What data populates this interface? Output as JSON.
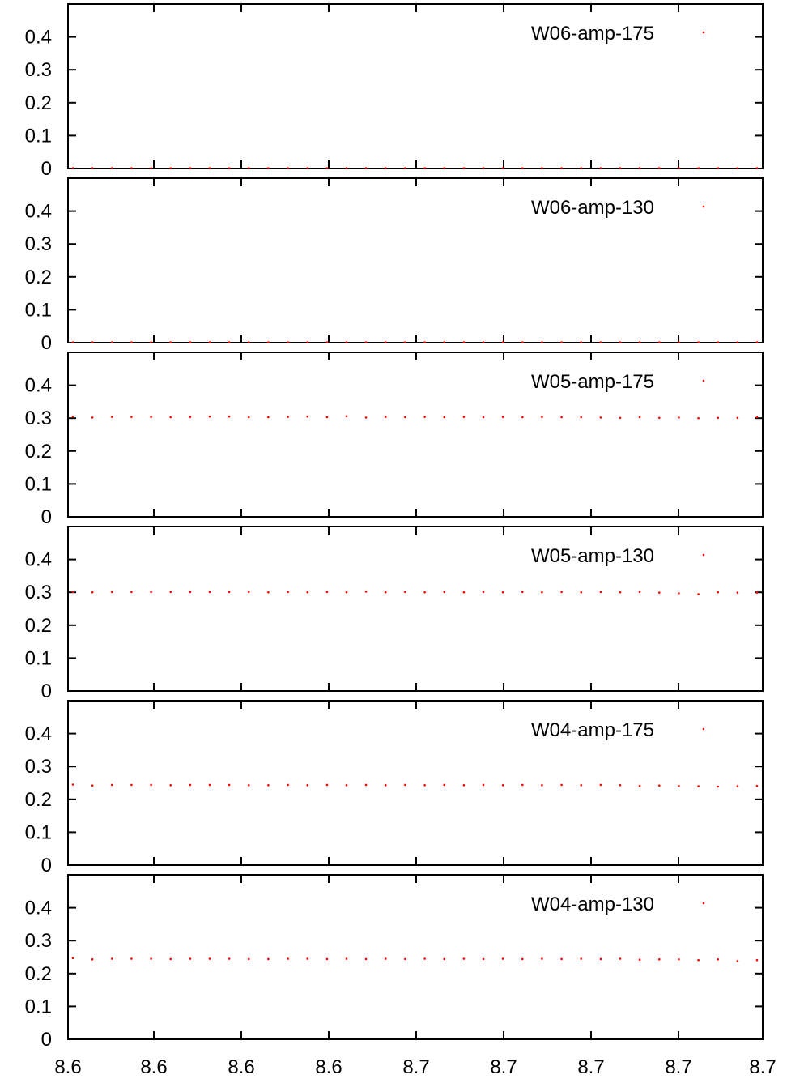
{
  "chart_data": [
    {
      "type": "scatter",
      "legend_position": "top-right",
      "ylim": [
        0,
        0.5
      ],
      "y_ticks": [
        "0",
        "0.1",
        "0.2",
        "0.3",
        "0.4"
      ],
      "x_tick_labels": [
        "8.6",
        "8.6",
        "8.6",
        "8.6",
        "8.7",
        "8.7",
        "8.7",
        "8.7",
        "8.7"
      ],
      "series": [
        {
          "name": "W06-amp-175",
          "color": "#ff0000",
          "values": [
            0.001,
            0.001,
            0.001,
            0.001,
            0.001,
            0.001,
            0.001,
            0.001,
            0.001,
            0.001,
            0.001,
            0.001,
            0.001,
            0.001,
            0.001,
            0.001,
            0.001,
            0.001,
            0.001,
            0.001,
            0.001,
            0.001,
            0.001,
            0.001,
            0.001,
            0.001,
            0.001,
            0.001,
            0.001,
            0.001,
            0.001,
            0.001,
            0.001,
            0.001,
            0.001,
            0.001
          ]
        }
      ]
    },
    {
      "type": "scatter",
      "legend_position": "top-right",
      "ylim": [
        0,
        0.5
      ],
      "y_ticks": [
        "0",
        "0.1",
        "0.2",
        "0.3",
        "0.4"
      ],
      "x_tick_labels": [
        "8.6",
        "8.6",
        "8.6",
        "8.6",
        "8.7",
        "8.7",
        "8.7",
        "8.7",
        "8.7"
      ],
      "series": [
        {
          "name": "W06-amp-130",
          "color": "#ff0000",
          "values": [
            0.001,
            0.001,
            0.001,
            0.001,
            0.001,
            0.001,
            0.001,
            0.001,
            0.001,
            0.001,
            0.001,
            0.001,
            0.001,
            0.001,
            0.001,
            0.001,
            0.001,
            0.001,
            0.001,
            0.001,
            0.001,
            0.001,
            0.001,
            0.001,
            0.001,
            0.001,
            0.001,
            0.001,
            0.001,
            0.001,
            0.001,
            0.001,
            0.001,
            0.001,
            0.001,
            0.001
          ]
        }
      ]
    },
    {
      "type": "scatter",
      "legend_position": "top-right",
      "ylim": [
        0,
        0.5
      ],
      "y_ticks": [
        "0",
        "0.1",
        "0.2",
        "0.3",
        "0.4"
      ],
      "x_tick_labels": [
        "8.6",
        "8.6",
        "8.6",
        "8.6",
        "8.7",
        "8.7",
        "8.7",
        "8.7",
        "8.7"
      ],
      "series": [
        {
          "name": "W05-amp-175",
          "color": "#ff0000",
          "values": [
            0.305,
            0.302,
            0.304,
            0.304,
            0.304,
            0.303,
            0.304,
            0.305,
            0.305,
            0.303,
            0.303,
            0.304,
            0.305,
            0.303,
            0.306,
            0.302,
            0.304,
            0.303,
            0.304,
            0.303,
            0.304,
            0.303,
            0.304,
            0.303,
            0.304,
            0.303,
            0.303,
            0.302,
            0.301,
            0.303,
            0.301,
            0.302,
            0.3,
            0.301,
            0.301,
            0.303
          ]
        }
      ]
    },
    {
      "type": "scatter",
      "legend_position": "top-right",
      "ylim": [
        0,
        0.5
      ],
      "y_ticks": [
        "0",
        "0.1",
        "0.2",
        "0.3",
        "0.4"
      ],
      "x_tick_labels": [
        "8.6",
        "8.6",
        "8.6",
        "8.6",
        "8.7",
        "8.7",
        "8.7",
        "8.7",
        "8.7"
      ],
      "series": [
        {
          "name": "W05-amp-130",
          "color": "#ff0000",
          "values": [
            0.301,
            0.3,
            0.301,
            0.301,
            0.301,
            0.301,
            0.301,
            0.301,
            0.301,
            0.301,
            0.3,
            0.301,
            0.3,
            0.301,
            0.3,
            0.302,
            0.3,
            0.301,
            0.3,
            0.301,
            0.3,
            0.301,
            0.3,
            0.301,
            0.3,
            0.301,
            0.3,
            0.301,
            0.3,
            0.301,
            0.299,
            0.297,
            0.294,
            0.3,
            0.299,
            0.299
          ]
        }
      ]
    },
    {
      "type": "scatter",
      "legend_position": "top-right",
      "ylim": [
        0,
        0.5
      ],
      "y_ticks": [
        "0",
        "0.1",
        "0.2",
        "0.3",
        "0.4"
      ],
      "x_tick_labels": [
        "8.6",
        "8.6",
        "8.6",
        "8.6",
        "8.7",
        "8.7",
        "8.7",
        "8.7",
        "8.7"
      ],
      "series": [
        {
          "name": "W04-amp-175",
          "color": "#ff0000",
          "values": [
            0.245,
            0.242,
            0.244,
            0.244,
            0.244,
            0.243,
            0.244,
            0.244,
            0.244,
            0.243,
            0.243,
            0.244,
            0.243,
            0.244,
            0.243,
            0.244,
            0.243,
            0.244,
            0.243,
            0.244,
            0.243,
            0.244,
            0.243,
            0.244,
            0.243,
            0.244,
            0.243,
            0.244,
            0.243,
            0.241,
            0.242,
            0.241,
            0.24,
            0.239,
            0.24,
            0.241
          ]
        }
      ]
    },
    {
      "type": "scatter",
      "legend_position": "top-right",
      "ylim": [
        0,
        0.5
      ],
      "y_ticks": [
        "0",
        "0.1",
        "0.2",
        "0.3",
        "0.4"
      ],
      "x_tick_labels": [
        "8.6",
        "8.6",
        "8.6",
        "8.6",
        "8.7",
        "8.7",
        "8.7",
        "8.7",
        "8.7"
      ],
      "series": [
        {
          "name": "W04-amp-130",
          "color": "#ff0000",
          "values": [
            0.247,
            0.243,
            0.245,
            0.245,
            0.245,
            0.244,
            0.245,
            0.245,
            0.245,
            0.244,
            0.244,
            0.245,
            0.245,
            0.244,
            0.245,
            0.244,
            0.245,
            0.244,
            0.245,
            0.244,
            0.245,
            0.244,
            0.245,
            0.244,
            0.245,
            0.244,
            0.245,
            0.244,
            0.245,
            0.242,
            0.243,
            0.243,
            0.241,
            0.243,
            0.238,
            0.241
          ]
        }
      ]
    }
  ]
}
